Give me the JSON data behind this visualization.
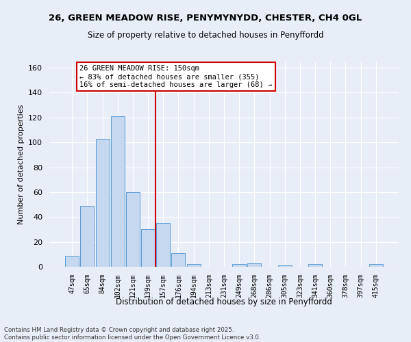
{
  "title_line1": "26, GREEN MEADOW RISE, PENYMYNYDD, CHESTER, CH4 0GL",
  "title_line2": "Size of property relative to detached houses in Penyffordd",
  "xlabel": "Distribution of detached houses by size in Penyffordd",
  "ylabel": "Number of detached properties",
  "categories": [
    "47sqm",
    "65sqm",
    "84sqm",
    "102sqm",
    "121sqm",
    "139sqm",
    "157sqm",
    "176sqm",
    "194sqm",
    "213sqm",
    "231sqm",
    "249sqm",
    "268sqm",
    "286sqm",
    "305sqm",
    "323sqm",
    "341sqm",
    "360sqm",
    "378sqm",
    "397sqm",
    "415sqm"
  ],
  "values": [
    9,
    49,
    103,
    121,
    60,
    30,
    35,
    11,
    2,
    0,
    0,
    2,
    3,
    0,
    1,
    0,
    2,
    0,
    0,
    0,
    2
  ],
  "bar_color": "#c5d8f0",
  "bar_edge_color": "#5b9bd5",
  "vline_color": "#cc0000",
  "vline_pos": 5.5,
  "annotation_text": "26 GREEN MEADOW RISE: 150sqm\n← 83% of detached houses are smaller (355)\n16% of semi-detached houses are larger (68) →",
  "ylim": [
    0,
    165
  ],
  "yticks": [
    0,
    20,
    40,
    60,
    80,
    100,
    120,
    140,
    160
  ],
  "footer_line1": "Contains HM Land Registry data © Crown copyright and database right 2025.",
  "footer_line2": "Contains public sector information licensed under the Open Government Licence v3.0.",
  "bg_color": "#e8eef8",
  "plot_bg_color": "#e8eef8"
}
